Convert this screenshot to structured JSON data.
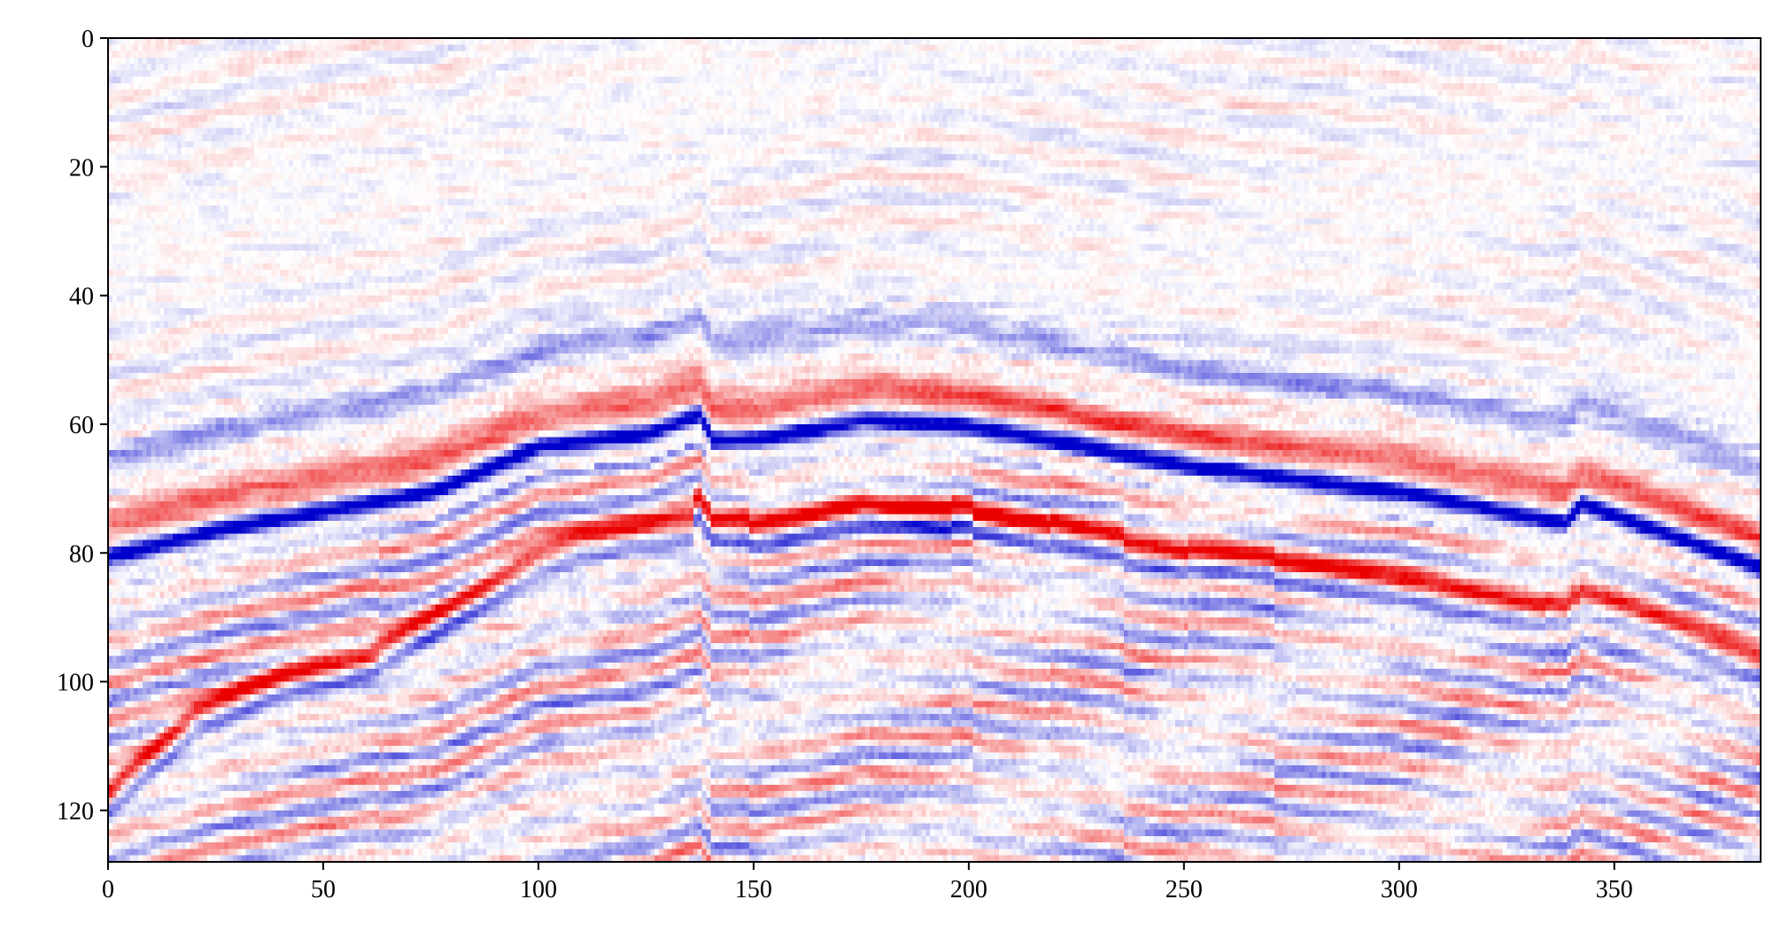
{
  "chart_data": {
    "type": "heatmap",
    "title": "",
    "xlabel": "",
    "ylabel": "",
    "colormap": "seismic (blue-white-red)",
    "colors": {
      "negative": "#0000cc",
      "zero": "#ffffff",
      "positive": "#ee0000"
    },
    "grid": false,
    "xlim": [
      0,
      384
    ],
    "ylim": [
      128,
      0
    ],
    "x_ticks": [
      0,
      50,
      100,
      150,
      200,
      250,
      300,
      350
    ],
    "x_tick_labels": [
      "0",
      "50",
      "100",
      "150",
      "200",
      "250",
      "300",
      "350"
    ],
    "y_ticks": [
      0,
      20,
      40,
      60,
      80,
      100,
      120
    ],
    "y_tick_labels": [
      "0",
      "20",
      "40",
      "60",
      "80",
      "100",
      "120"
    ],
    "dimensions": {
      "columns": 384,
      "rows": 128
    },
    "strong_reflector_blue": {
      "x": [
        0,
        25,
        50,
        75,
        100,
        125,
        137,
        140,
        150,
        175,
        200,
        225,
        250,
        275,
        300,
        338,
        342,
        384
      ],
      "y": [
        80,
        76,
        73,
        70,
        63,
        61,
        58,
        62,
        62,
        59,
        60,
        63,
        66,
        68,
        70,
        75,
        72,
        82
      ]
    },
    "lower_reflector_red": {
      "x": [
        0,
        20,
        40,
        60,
        80,
        100,
        110,
        135
      ],
      "y": [
        116,
        104,
        98,
        95,
        87,
        79,
        77,
        74
      ]
    },
    "faults_x": [
      62,
      138,
      148,
      195,
      200,
      218,
      235,
      250,
      270,
      333,
      340
    ]
  }
}
